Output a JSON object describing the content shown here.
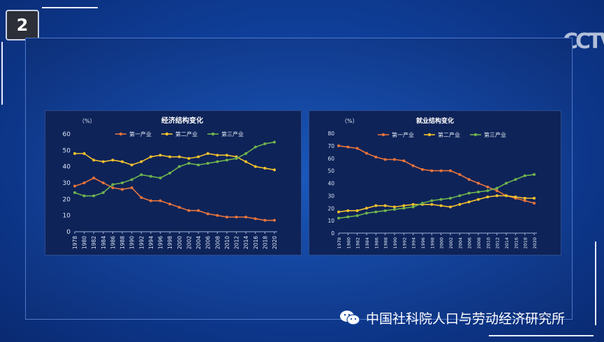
{
  "badge": {
    "number": "2"
  },
  "logo": {
    "text": "CCTV"
  },
  "watermark": {
    "text": "中国社科院人口与劳动经济研究所",
    "icon": "wechat-icon"
  },
  "colors": {
    "primary": "#e8743b",
    "secondary": "#f2c12e",
    "tertiary": "#6fb34f"
  },
  "chart_data": [
    {
      "type": "line",
      "title": "经济结构变化",
      "ylabel": "（%）",
      "ylim": [
        0,
        60
      ],
      "yticks": [
        0,
        10,
        20,
        30,
        40,
        50,
        60
      ],
      "xticks": [
        "1978",
        "1980",
        "1982",
        "1984",
        "1986",
        "1988",
        "1990",
        "1992",
        "1994",
        "1996",
        "1998",
        "2000",
        "2002",
        "2004",
        "2006",
        "2008",
        "2010",
        "2012",
        "2014",
        "2016",
        "2018",
        "2020"
      ],
      "legend": "top",
      "x": [
        1978,
        1980,
        1982,
        1984,
        1986,
        1988,
        1990,
        1992,
        1994,
        1996,
        1998,
        2000,
        2002,
        2004,
        2006,
        2008,
        2010,
        2012,
        2014,
        2016,
        2018,
        2020
      ],
      "series": [
        {
          "name": "第一产业",
          "color": "#e8743b",
          "values": [
            28,
            30,
            33,
            30,
            27,
            26,
            27,
            21,
            19,
            19,
            17,
            15,
            13,
            13,
            11,
            10,
            9,
            9,
            9,
            8,
            7,
            7
          ]
        },
        {
          "name": "第二产业",
          "color": "#f2c12e",
          "values": [
            48,
            48,
            44,
            43,
            44,
            43,
            41,
            43,
            46,
            47,
            46,
            46,
            45,
            46,
            48,
            47,
            47,
            46,
            43,
            40,
            39,
            38
          ]
        },
        {
          "name": "第三产业",
          "color": "#6fb34f",
          "values": [
            24,
            22,
            22,
            24,
            29,
            30,
            32,
            35,
            34,
            33,
            36,
            40,
            42,
            41,
            42,
            43,
            44,
            45,
            48,
            52,
            54,
            55
          ]
        }
      ]
    },
    {
      "type": "line",
      "title": "就业结构变化",
      "ylabel": "（%）",
      "ylim": [
        0,
        80
      ],
      "yticks": [
        0,
        10,
        20,
        30,
        40,
        50,
        60,
        70,
        80
      ],
      "xticks": [
        "1978",
        "1980",
        "1982",
        "1984",
        "1986",
        "1988",
        "1990",
        "1992",
        "1994",
        "1996",
        "1998",
        "2000",
        "2002",
        "2004",
        "2006",
        "2008",
        "2010",
        "2012",
        "2014",
        "2016",
        "2018",
        "2020"
      ],
      "legend": "top",
      "x": [
        1978,
        1980,
        1982,
        1984,
        1986,
        1988,
        1990,
        1992,
        1994,
        1996,
        1998,
        2000,
        2002,
        2004,
        2006,
        2008,
        2010,
        2012,
        2014,
        2016,
        2018,
        2020
      ],
      "series": [
        {
          "name": "第一产业",
          "color": "#e8743b",
          "values": [
            70,
            69,
            68,
            64,
            61,
            59,
            59,
            58,
            54,
            51,
            50,
            50,
            50,
            47,
            43,
            40,
            37,
            34,
            30,
            28,
            26,
            24
          ]
        },
        {
          "name": "第二产业",
          "color": "#f2c12e",
          "values": [
            17,
            18,
            18,
            20,
            22,
            22,
            21,
            22,
            23,
            23,
            23,
            22,
            21,
            23,
            25,
            27,
            29,
            30,
            30,
            29,
            28,
            28
          ]
        },
        {
          "name": "第三产业",
          "color": "#6fb34f",
          "values": [
            12,
            13,
            14,
            16,
            17,
            18,
            19,
            20,
            21,
            24,
            26,
            27,
            28,
            30,
            32,
            33,
            34,
            36,
            40,
            43,
            46,
            47
          ]
        }
      ]
    }
  ]
}
